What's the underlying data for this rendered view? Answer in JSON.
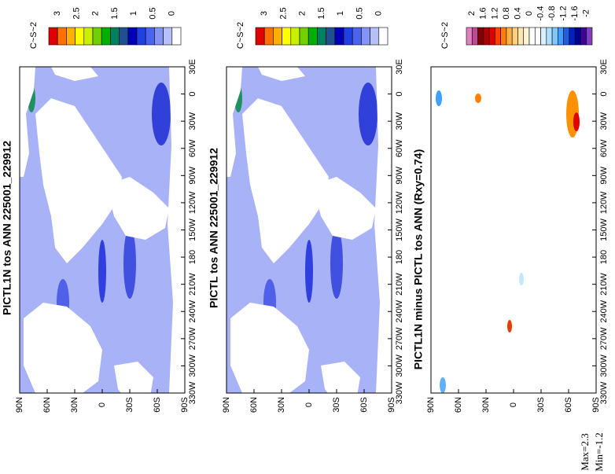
{
  "panels": [
    {
      "title": "PICTL1N tos ANN 225001_229912",
      "unit": "C~S~2",
      "colorbar": {
        "labels": [
          "3",
          "2.5",
          "2",
          "1.5",
          "1",
          "0.5",
          "0"
        ],
        "colors": [
          "#e00000",
          "#ff7000",
          "#ffb000",
          "#ffff00",
          "#c8f000",
          "#70d000",
          "#00b000",
          "#008060",
          "#205090",
          "#0000b8",
          "#2040e0",
          "#4a64f0",
          "#8494f4",
          "#b8c0fa",
          "#ffffff"
        ]
      },
      "lat_labels": [
        "90N",
        "60N",
        "30N",
        "0",
        "30S",
        "60S",
        "90S"
      ],
      "lon_labels": [
        "30E",
        "0",
        "30W",
        "60W",
        "90W",
        "120W",
        "150W",
        "180",
        "210W",
        "240W",
        "270W",
        "300W",
        "330W"
      ]
    },
    {
      "title": "PICTL tos ANN 225001_229912",
      "unit": "C~S~2",
      "colorbar": {
        "labels": [
          "3",
          "2.5",
          "2",
          "1.5",
          "1",
          "0.5",
          "0"
        ],
        "colors": [
          "#e00000",
          "#ff7000",
          "#ffb000",
          "#ffff00",
          "#c8f000",
          "#70d000",
          "#00b000",
          "#008060",
          "#205090",
          "#0000b8",
          "#2040e0",
          "#4a64f0",
          "#8494f4",
          "#b8c0fa",
          "#ffffff"
        ]
      },
      "lat_labels": [
        "90N",
        "60N",
        "30N",
        "0",
        "30S",
        "60S",
        "90S"
      ],
      "lon_labels": [
        "30E",
        "0",
        "30W",
        "60W",
        "90W",
        "120W",
        "150W",
        "180",
        "210W",
        "240W",
        "270W",
        "300W",
        "330W"
      ]
    },
    {
      "title": "PICTL1N minus PICTL tos ANN (Rxy=0.74)",
      "unit": "C~S~2",
      "colorbar": {
        "labels": [
          "2",
          "1.6",
          "1.2",
          "0.8",
          "0.4",
          "0",
          "-0.4",
          "-0.8",
          "-1.2",
          "-1.6",
          "-2"
        ],
        "colors": [
          "#e080c0",
          "#c04890",
          "#800000",
          "#b00000",
          "#e00000",
          "#ff4000",
          "#ff8000",
          "#ffb040",
          "#ffd080",
          "#ffe8b0",
          "#fff4d8",
          "#ffffff",
          "#ffffff",
          "#d8f0ff",
          "#b0e0ff",
          "#80c8ff",
          "#40a0ff",
          "#2060e0",
          "#0020c0",
          "#000090",
          "#4000a0",
          "#8040c0"
        ]
      },
      "lat_labels": [
        "90N",
        "60N",
        "30N",
        "0",
        "30S",
        "60S",
        "90S"
      ],
      "lon_labels": [
        "30E",
        "0",
        "30W",
        "60W",
        "90W",
        "120W",
        "150W",
        "180",
        "210W",
        "240W",
        "270W",
        "300W",
        "330W"
      ]
    }
  ],
  "stats": {
    "max": "Max=2.3",
    "min": "Min=-1.2"
  }
}
